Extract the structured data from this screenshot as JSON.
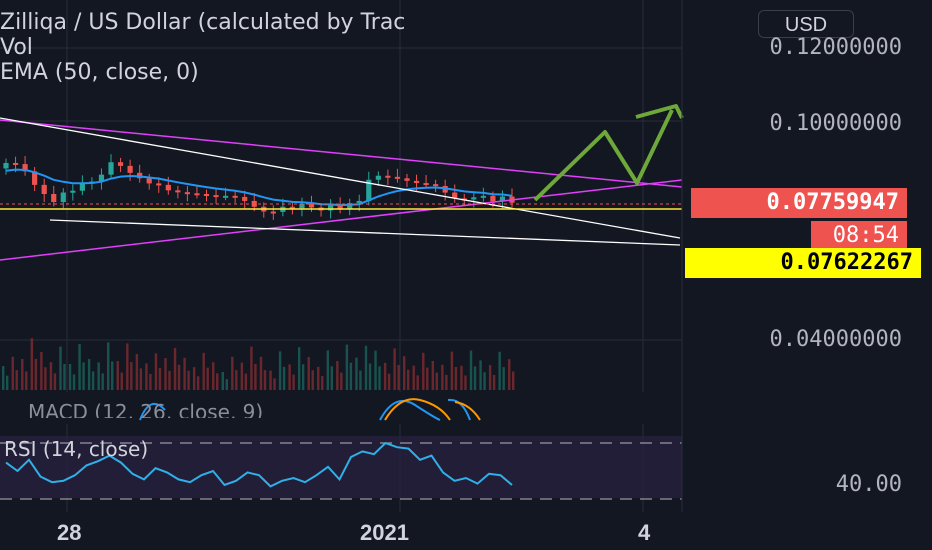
{
  "header": {
    "title": "Zilliqa / US Dollar (calculated by Trac",
    "vol_label": "Vol",
    "ema_label": "EMA (50, close, 0)",
    "currency_button": "USD"
  },
  "indicators": {
    "macd_label": "MACD (12, 26, close, 9)",
    "rsi_label": "RSI (14, close)"
  },
  "price_axis": {
    "labels": [
      "0.12000000",
      "0.10000000",
      "0.04000000"
    ],
    "current_price": "0.07759947",
    "countdown": "08:54",
    "marked_level": "0.07622267",
    "rsi_level": "40.00"
  },
  "time_axis": {
    "labels": [
      "28",
      "2021",
      "4"
    ]
  },
  "colors": {
    "background": "#131722",
    "up_candle": "#26a69a",
    "down_candle": "#ef5350",
    "ema": "#2196f3",
    "channel": "#e040fb",
    "trendline": "#ffffff",
    "support": "#ffeb3b",
    "projection_arrow": "#6fa83a",
    "rsi_line": "#2fb0e8",
    "rsi_band": "#2a2140",
    "price_tag_red": "#ef5350",
    "price_tag_yellow": "#ffff00"
  },
  "chart_data": {
    "type": "candlestick",
    "title": "Zilliqa / US Dollar (calculated by Trac",
    "price_range": [
      0.035,
      0.125
    ],
    "close_prices": [
      0.0885,
      0.0882,
      0.0862,
      0.0825,
      0.08,
      0.0778,
      0.0804,
      0.0809,
      0.0829,
      0.0834,
      0.0853,
      0.0887,
      0.0877,
      0.0858,
      0.0843,
      0.0829,
      0.0825,
      0.081,
      0.0805,
      0.0802,
      0.08,
      0.0797,
      0.0795,
      0.0795,
      0.0792,
      0.0781,
      0.0765,
      0.0752,
      0.0751,
      0.0765,
      0.0761,
      0.0773,
      0.0763,
      0.0755,
      0.0769,
      0.0759,
      0.0775,
      0.0781,
      0.0839,
      0.085,
      0.0847,
      0.0843,
      0.0836,
      0.083,
      0.0827,
      0.0822,
      0.0804,
      0.0788,
      0.0785,
      0.0791,
      0.0795,
      0.078,
      0.0793,
      0.0776
    ],
    "last_price": 0.07759947,
    "marked_level": 0.07622267,
    "rsi": [
      56,
      50,
      58,
      46,
      42,
      43,
      47,
      54,
      57,
      61,
      56,
      48,
      44,
      52,
      49,
      44,
      42,
      47,
      50,
      40,
      43,
      49,
      47,
      39,
      43,
      45,
      42,
      47,
      53,
      44,
      60,
      64,
      62,
      70,
      67,
      66,
      58,
      61,
      49,
      43,
      45,
      41,
      48,
      47,
      40
    ],
    "rsi_levels": [
      70,
      30
    ],
    "time_labels": [
      "28",
      "2021",
      "4"
    ]
  }
}
